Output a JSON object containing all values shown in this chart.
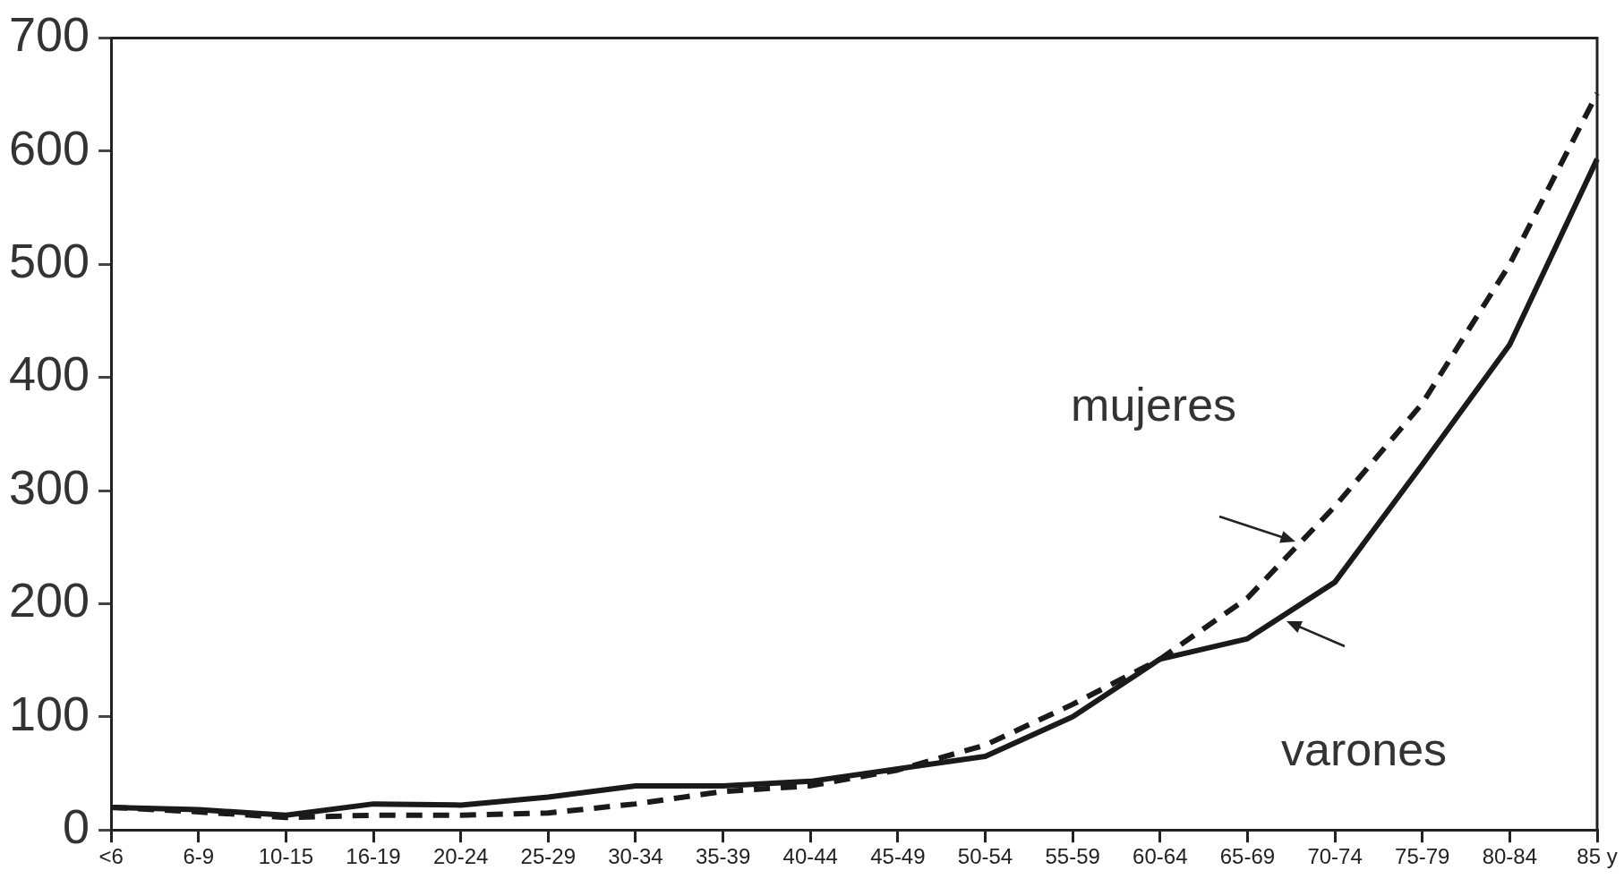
{
  "chart_data": {
    "type": "line",
    "categories": [
      "<6",
      "6-9",
      "10-15",
      "16-19",
      "20-24",
      "25-29",
      "30-34",
      "35-39",
      "40-44",
      "45-49",
      "50-54",
      "55-59",
      "60-64",
      "65-69",
      "70-74",
      "75-79",
      "80-84",
      "85 y"
    ],
    "series": [
      {
        "name": "mujeres",
        "color": "#1a1a1a",
        "line_style": "dashed",
        "values": [
          20,
          16,
          11,
          13,
          13,
          15,
          23,
          34,
          39,
          53,
          75,
          111,
          151,
          205,
          286,
          377,
          500,
          651
        ]
      },
      {
        "name": "varones",
        "color": "#1a1a1a",
        "line_style": "solid",
        "values": [
          20,
          18,
          13,
          23,
          22,
          29,
          39,
          39,
          43,
          54,
          65,
          100,
          151,
          169,
          219,
          323,
          429,
          593
        ]
      }
    ],
    "ylim": [
      0,
      700
    ],
    "yticks": [
      0,
      100,
      200,
      300,
      400,
      500,
      600,
      700
    ],
    "grid": false,
    "legend": false,
    "marker": "none"
  }
}
